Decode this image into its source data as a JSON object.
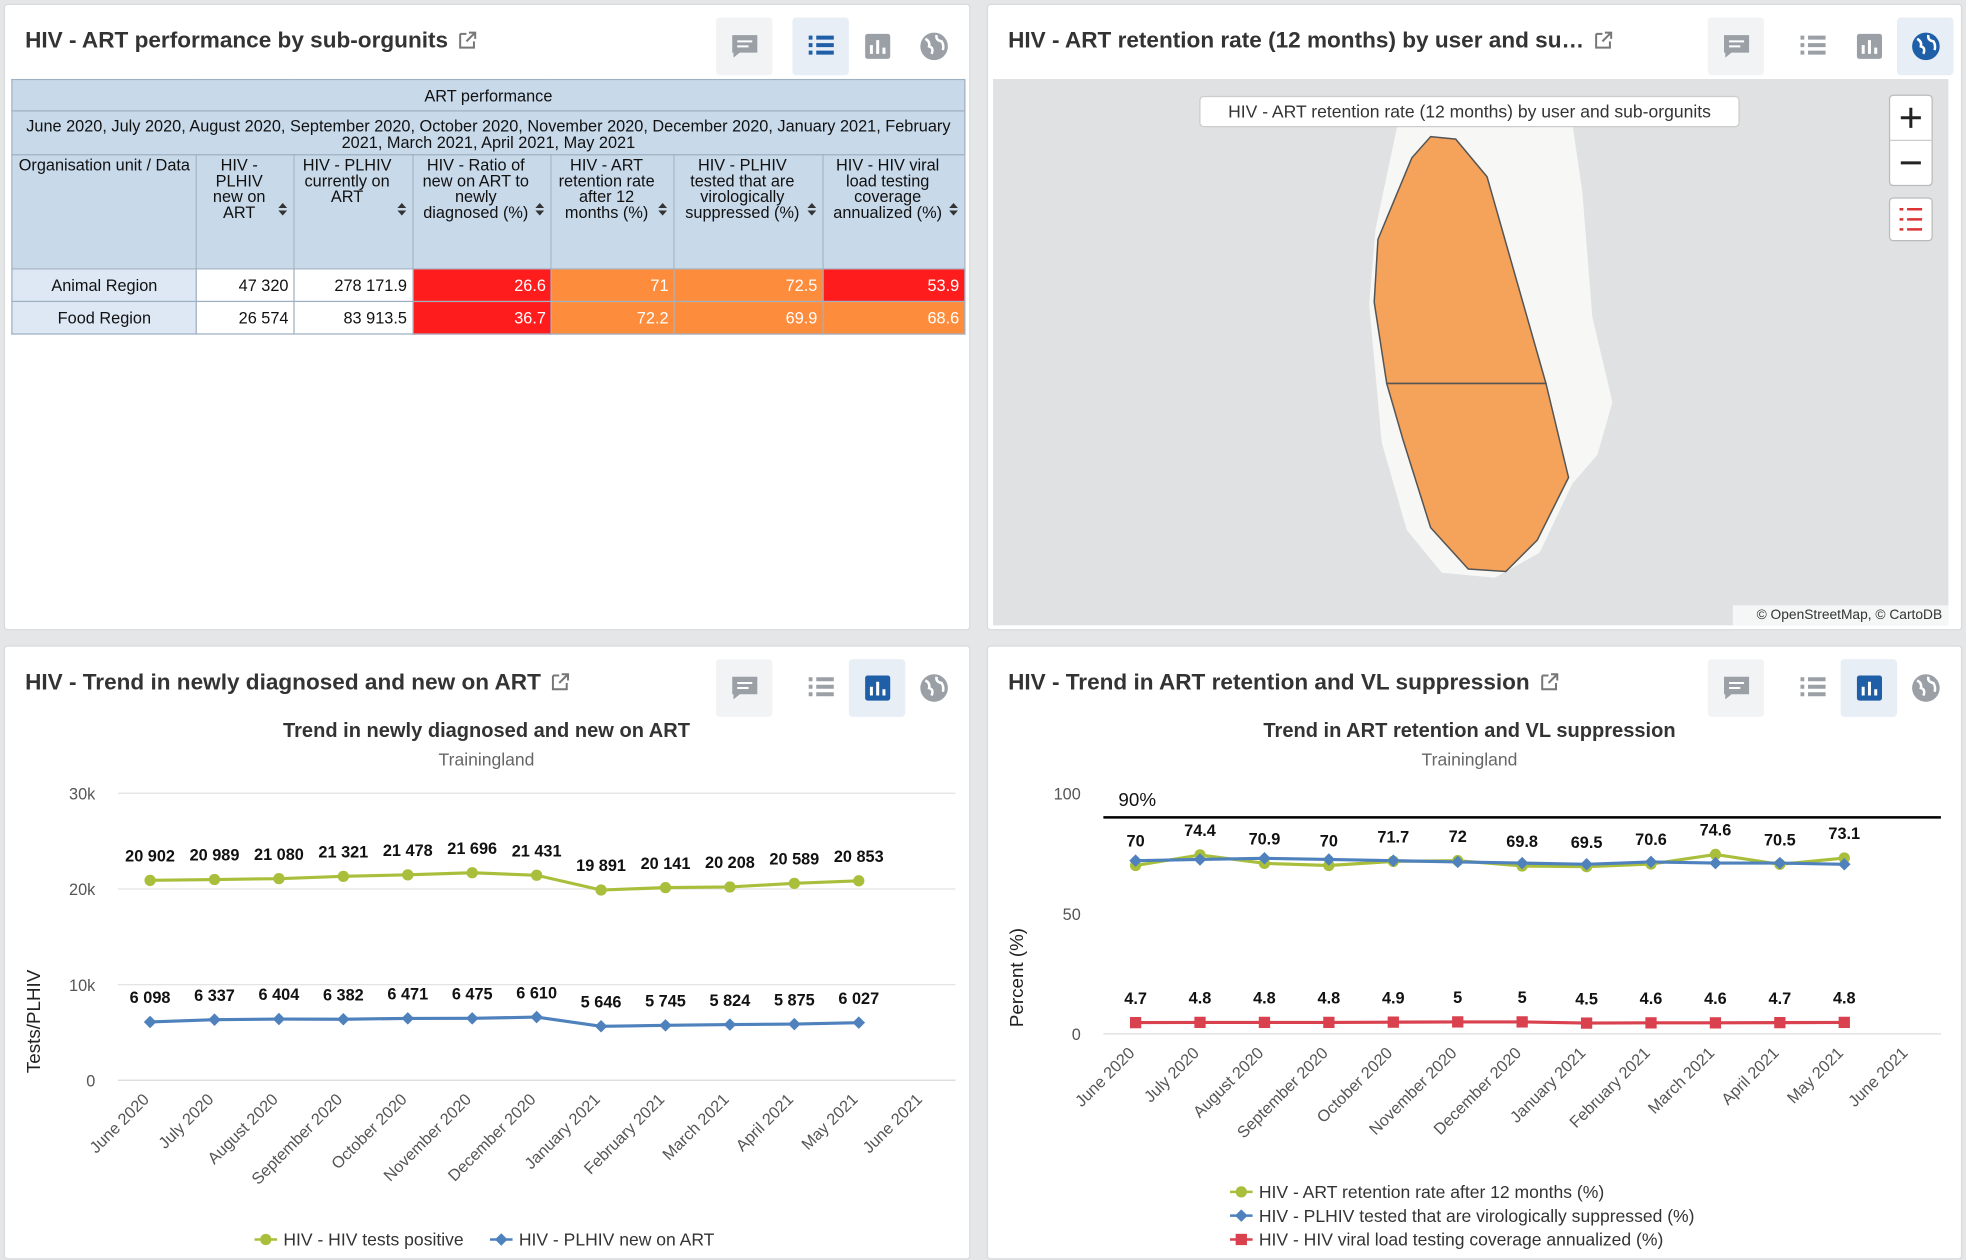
{
  "dashboard": {
    "table_widget": {
      "title": "HIV - ART performance by sub-orgunits",
      "table": {
        "title": "ART performance",
        "period": "June 2020, July 2020, August 2020, September 2020, October 2020, November 2020, December 2020, January 2021, February 2021, March 2021, April 2021, May 2021",
        "columns": [
          "Organisation unit / Data",
          "HIV - PLHIV new on ART",
          "HIV - PLHIV currently on ART",
          "HIV - Ratio of new on ART to newly diagnosed (%)",
          "HIV - ART retention rate after 12 months (%)",
          "HIV - PLHIV tested that are virologically suppressed (%)",
          "HIV - HIV viral load testing coverage annualized (%)"
        ],
        "rows": [
          {
            "name": "Animal Region",
            "cells": [
              {
                "text": "47 320"
              },
              {
                "text": "278 171.9"
              },
              {
                "text": "26.6",
                "color": "#ff1c1c"
              },
              {
                "text": "71",
                "color": "#fd8d3c"
              },
              {
                "text": "72.5",
                "color": "#fd8d3c"
              },
              {
                "text": "53.9",
                "color": "#ff1c1c"
              }
            ]
          },
          {
            "name": "Food Region",
            "cells": [
              {
                "text": "26 574"
              },
              {
                "text": "83 913.5"
              },
              {
                "text": "36.7",
                "color": "#ff1c1c"
              },
              {
                "text": "72.2",
                "color": "#fd8d3c"
              },
              {
                "text": "69.9",
                "color": "#fd8d3c"
              },
              {
                "text": "68.6",
                "color": "#fd8d3c"
              }
            ]
          }
        ]
      }
    },
    "map_widget": {
      "title": "HIV - ART retention rate (12 months) by user and su…",
      "layer_label": "HIV - ART retention rate (12 months) by user and sub-orgunits",
      "attribution": "© OpenStreetMap, © CartoDB"
    }
  },
  "chart_data": [
    {
      "type": "line",
      "widget_title": "HIV - Trend in newly diagnosed and new on ART",
      "title": "Trend in newly diagnosed and new on ART",
      "subtitle": "Trainingland",
      "y_label": "Tests/PLHIV",
      "categories": [
        "June 2020",
        "July 2020",
        "August 2020",
        "September 2020",
        "October 2020",
        "November 2020",
        "December 2020",
        "January 2021",
        "February 2021",
        "March 2021",
        "April 2021",
        "May 2021",
        "June 2021"
      ],
      "ylim": [
        0,
        30000
      ],
      "yticks": [
        0,
        {
          "value": 10000,
          "label": "10k"
        },
        {
          "value": 20000,
          "label": "20k"
        },
        {
          "value": 30000,
          "label": "30k"
        }
      ],
      "grid": true,
      "series": [
        {
          "name": "HIV - HIV tests positive",
          "color": "#a9bf3b",
          "marker": "circle",
          "values": [
            20902,
            20989,
            21080,
            21321,
            21478,
            21696,
            21431,
            19891,
            20141,
            20208,
            20589,
            20853,
            null
          ],
          "value_labels": [
            "20 902",
            "20 989",
            "21 080",
            "21 321",
            "21 478",
            "21 696",
            "21 431",
            "19 891",
            "20 141",
            "20 208",
            "20 589",
            "20 853",
            null
          ]
        },
        {
          "name": "HIV - PLHIV new on ART",
          "color": "#4f81bd",
          "marker": "diamond",
          "values": [
            6098,
            6337,
            6404,
            6382,
            6471,
            6475,
            6610,
            5646,
            5745,
            5824,
            5875,
            6027,
            null
          ],
          "value_labels": [
            "6 098",
            "6 337",
            "6 404",
            "6 382",
            "6 471",
            "6 475",
            "6 610",
            "5 646",
            "5 745",
            "5 824",
            "5 875",
            "6 027",
            null
          ]
        }
      ]
    },
    {
      "type": "line",
      "widget_title": "HIV - Trend in ART retention and VL suppression",
      "title": "Trend in ART retention and VL suppression",
      "subtitle": "Trainingland",
      "y_label": "Percent (%)",
      "categories": [
        "June 2020",
        "July 2020",
        "August 2020",
        "September 2020",
        "October 2020",
        "November 2020",
        "December 2020",
        "January 2021",
        "February 2021",
        "March 2021",
        "April 2021",
        "May 2021",
        "June 2021"
      ],
      "ylim": [
        0,
        100
      ],
      "yticks": [
        0,
        50,
        100
      ],
      "grid": false,
      "target_lines": [
        {
          "value": 90,
          "label": "90%"
        }
      ],
      "series": [
        {
          "name": "HIV - ART retention rate after 12 months (%)",
          "color": "#a9bf3b",
          "marker": "circle",
          "values": [
            70,
            74.4,
            70.9,
            70,
            71.7,
            72,
            69.8,
            69.5,
            70.6,
            74.6,
            70.5,
            73.1,
            null
          ]
        },
        {
          "name": "HIV - PLHIV tested that are virologically suppressed (%)",
          "color": "#4f81bd",
          "marker": "diamond",
          "data_labels": false,
          "values": [
            72,
            72.5,
            73,
            72.5,
            72,
            71.5,
            71,
            70.5,
            71.5,
            71,
            71,
            70.5,
            null
          ]
        },
        {
          "name": "HIV - HIV viral load testing coverage annualized (%)",
          "color": "#d9414f",
          "marker": "square",
          "values": [
            4.7,
            4.8,
            4.8,
            4.8,
            4.9,
            5,
            5,
            4.5,
            4.6,
            4.6,
            4.7,
            4.8,
            null
          ]
        }
      ]
    }
  ]
}
